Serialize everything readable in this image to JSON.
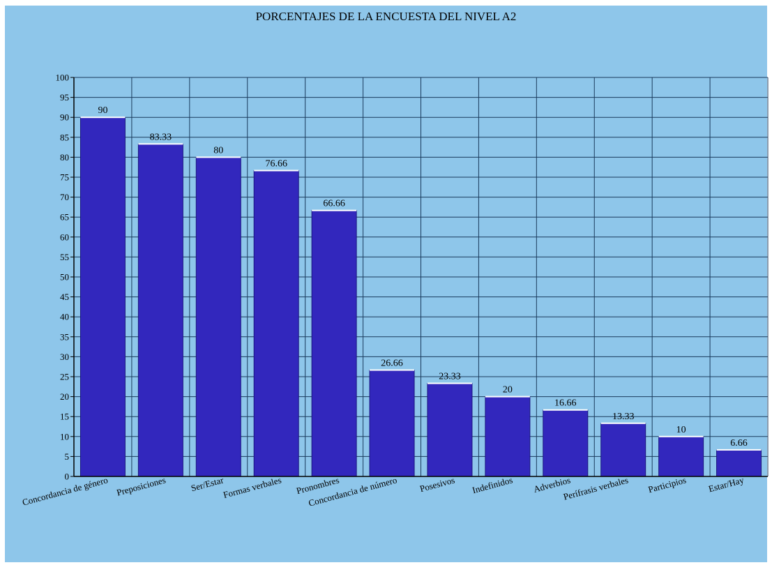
{
  "chart_data": {
    "type": "bar",
    "title": "PORCENTAJES DE LA ENCUESTA DEL NIVEL A2",
    "categories": [
      "Concordancia de género",
      "Preposiciones",
      "Ser/Estar",
      "Formas verbales",
      "Pronombres",
      "Concordancia de número",
      "Posesivos",
      "Indefinidos",
      "Adverbios",
      "Perífrasis verbales",
      "Participios",
      "Estar/Hay"
    ],
    "values": [
      90,
      83.33,
      80,
      76.66,
      66.66,
      26.66,
      23.33,
      20,
      16.66,
      13.33,
      10,
      6.66
    ],
    "value_labels": [
      "90",
      "83.33",
      "80",
      "76.66",
      "66.66",
      "26.66",
      "23.33",
      "20",
      "16.66",
      "13.33",
      "10",
      "6.66"
    ],
    "ylim": [
      0,
      100
    ],
    "y_ticks": [
      0,
      5,
      10,
      15,
      20,
      25,
      30,
      35,
      40,
      45,
      50,
      55,
      60,
      65,
      70,
      75,
      80,
      85,
      90,
      95,
      100
    ],
    "grid": true,
    "legend": "none",
    "colors": {
      "bar": "#3227bd",
      "background": "#8ec6ea",
      "grid": "#1a3a5c"
    }
  }
}
